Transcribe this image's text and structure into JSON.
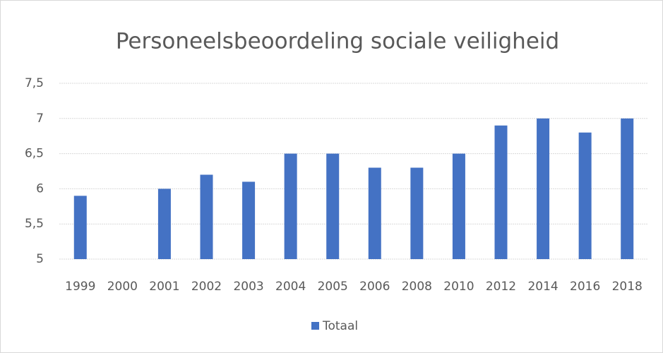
{
  "chart_data": {
    "type": "bar",
    "title": "Personeelsbeoordeling sociale veiligheid",
    "categories": [
      "1999",
      "2000",
      "2001",
      "2002",
      "2003",
      "2004",
      "2005",
      "2006",
      "2008",
      "2010",
      "2012",
      "2014",
      "2016",
      "2018"
    ],
    "series": [
      {
        "name": "Totaal",
        "color": "#4472c4",
        "values": [
          5.9,
          null,
          6.0,
          6.2,
          6.1,
          6.5,
          6.5,
          6.3,
          6.3,
          6.5,
          6.9,
          7.0,
          6.8,
          7.0
        ]
      }
    ],
    "ylim": [
      5,
      7.5
    ],
    "yticks": [
      {
        "value": 5,
        "label": "5"
      },
      {
        "value": 5.5,
        "label": "5,5"
      },
      {
        "value": 6,
        "label": "6"
      },
      {
        "value": 6.5,
        "label": "6,5"
      },
      {
        "value": 7,
        "label": "7"
      },
      {
        "value": 7.5,
        "label": "7,5"
      }
    ],
    "grid": true,
    "legend": "bottom"
  }
}
